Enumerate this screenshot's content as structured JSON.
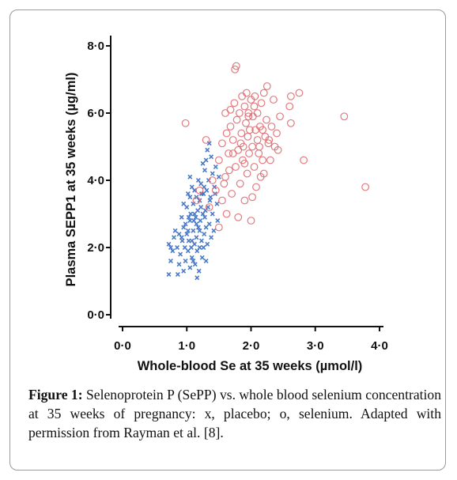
{
  "chart_data": {
    "type": "scatter",
    "xlabel": "Whole-blood Se at 35 weeks (µmol/l)",
    "ylabel": "Plasma SEPP1 at 35 weeks (µg/ml)",
    "xlim": [
      0,
      4
    ],
    "ylim": [
      0,
      8
    ],
    "x_ticks": [
      "0·0",
      "1·0",
      "2·0",
      "3·0",
      "4·0"
    ],
    "y_ticks": [
      "0·0",
      "2·0",
      "4·0",
      "6·0",
      "8·0"
    ],
    "grid": false,
    "series": [
      {
        "marker": "x",
        "color": "#3a6fc4",
        "points": [
          [
            0.72,
            1.2
          ],
          [
            0.75,
            1.6
          ],
          [
            0.72,
            2.1
          ],
          [
            0.75,
            2.0
          ],
          [
            0.78,
            1.9
          ],
          [
            0.82,
            2.5
          ],
          [
            0.85,
            2.0
          ],
          [
            0.86,
            1.2
          ],
          [
            0.88,
            2.4
          ],
          [
            0.9,
            1.8
          ],
          [
            0.92,
            2.9
          ],
          [
            0.93,
            2.2
          ],
          [
            0.95,
            1.3
          ],
          [
            0.95,
            2.6
          ],
          [
            0.97,
            2.0
          ],
          [
            0.98,
            1.6
          ],
          [
            1.0,
            3.2
          ],
          [
            1.0,
            2.4
          ],
          [
            1.02,
            1.9
          ],
          [
            1.02,
            3.6
          ],
          [
            1.03,
            2.2
          ],
          [
            1.05,
            1.4
          ],
          [
            1.05,
            2.8
          ],
          [
            1.06,
            3.0
          ],
          [
            1.07,
            2.0
          ],
          [
            1.08,
            3.8
          ],
          [
            1.08,
            1.7
          ],
          [
            1.1,
            2.5
          ],
          [
            1.1,
            3.3
          ],
          [
            1.12,
            2.1
          ],
          [
            1.12,
            3.7
          ],
          [
            1.13,
            1.5
          ],
          [
            1.14,
            2.9
          ],
          [
            1.15,
            2.3
          ],
          [
            1.15,
            3.5
          ],
          [
            1.16,
            1.9
          ],
          [
            1.17,
            3.1
          ],
          [
            1.18,
            2.6
          ],
          [
            1.19,
            1.3
          ],
          [
            1.2,
            3.4
          ],
          [
            1.2,
            2.0
          ],
          [
            1.21,
            2.8
          ],
          [
            1.22,
            3.9
          ],
          [
            1.23,
            2.2
          ],
          [
            1.24,
            1.7
          ],
          [
            1.25,
            3.0
          ],
          [
            1.26,
            3.6
          ],
          [
            1.27,
            2.4
          ],
          [
            1.28,
            4.3
          ],
          [
            1.28,
            2.9
          ],
          [
            1.3,
            1.6
          ],
          [
            1.3,
            4.6
          ],
          [
            1.31,
            3.7
          ],
          [
            1.32,
            2.1
          ],
          [
            1.33,
            3.2
          ],
          [
            1.34,
            4.0
          ],
          [
            1.35,
            2.7
          ],
          [
            1.35,
            5.1
          ],
          [
            1.37,
            3.5
          ],
          [
            1.38,
            2.3
          ],
          [
            1.4,
            4.2
          ],
          [
            1.4,
            3.0
          ],
          [
            1.42,
            2.5
          ],
          [
            1.43,
            3.8
          ],
          [
            1.45,
            4.4
          ],
          [
            1.47,
            3.3
          ],
          [
            1.48,
            2.8
          ],
          [
            1.5,
            4.1
          ],
          [
            1.05,
            4.1
          ],
          [
            0.98,
            2.7
          ],
          [
            1.02,
            2.5
          ],
          [
            1.1,
            1.6
          ],
          [
            1.18,
            4.0
          ],
          [
            1.22,
            3.2
          ],
          [
            1.26,
            2.0
          ],
          [
            1.3,
            2.6
          ],
          [
            0.88,
            1.5
          ],
          [
            0.92,
            2.3
          ],
          [
            1.15,
            2.7
          ],
          [
            1.25,
            4.5
          ],
          [
            1.36,
            3.4
          ],
          [
            1.08,
            2.2
          ],
          [
            1.12,
            3.0
          ],
          [
            1.2,
            2.5
          ],
          [
            0.95,
            3.3
          ],
          [
            1.44,
            3.6
          ],
          [
            1.32,
            4.9
          ],
          [
            1.05,
            3.5
          ],
          [
            0.8,
            2.3
          ],
          [
            1.16,
            1.1
          ],
          [
            1.23,
            3.6
          ],
          [
            1.29,
            3.1
          ],
          [
            1.38,
            4.7
          ],
          [
            1.11,
            2.8
          ],
          [
            1.27,
            3.8
          ],
          [
            1.03,
            2.9
          ]
        ]
      },
      {
        "marker": "o",
        "color": "#e06a70",
        "points": [
          [
            0.98,
            5.7
          ],
          [
            1.15,
            3.4
          ],
          [
            1.2,
            3.7
          ],
          [
            1.3,
            5.2
          ],
          [
            1.35,
            3.2
          ],
          [
            1.4,
            4.0
          ],
          [
            1.45,
            3.7
          ],
          [
            1.5,
            4.6
          ],
          [
            1.5,
            2.6
          ],
          [
            1.55,
            5.1
          ],
          [
            1.55,
            3.4
          ],
          [
            1.6,
            4.1
          ],
          [
            1.6,
            6.0
          ],
          [
            1.62,
            3.0
          ],
          [
            1.65,
            4.8
          ],
          [
            1.68,
            5.6
          ],
          [
            1.7,
            3.6
          ],
          [
            1.72,
            5.2
          ],
          [
            1.74,
            6.3
          ],
          [
            1.75,
            7.3
          ],
          [
            1.76,
            4.4
          ],
          [
            1.78,
            5.8
          ],
          [
            1.8,
            2.9
          ],
          [
            1.8,
            4.9
          ],
          [
            1.82,
            6.0
          ],
          [
            1.83,
            3.9
          ],
          [
            1.85,
            5.4
          ],
          [
            1.86,
            6.5
          ],
          [
            1.87,
            4.6
          ],
          [
            1.88,
            5.0
          ],
          [
            1.9,
            6.2
          ],
          [
            1.9,
            3.4
          ],
          [
            1.92,
            5.7
          ],
          [
            1.93,
            6.6
          ],
          [
            1.94,
            4.2
          ],
          [
            1.95,
            5.3
          ],
          [
            1.96,
            6.0
          ],
          [
            1.97,
            4.8
          ],
          [
            1.98,
            5.5
          ],
          [
            2.0,
            6.4
          ],
          [
            2.0,
            2.8
          ],
          [
            2.02,
            5.0
          ],
          [
            2.03,
            5.9
          ],
          [
            2.05,
            4.4
          ],
          [
            2.05,
            6.2
          ],
          [
            2.07,
            5.5
          ],
          [
            2.08,
            3.8
          ],
          [
            2.1,
            5.2
          ],
          [
            2.1,
            6.0
          ],
          [
            2.12,
            4.8
          ],
          [
            2.14,
            5.6
          ],
          [
            2.15,
            4.1
          ],
          [
            2.16,
            6.3
          ],
          [
            2.18,
            5.5
          ],
          [
            2.2,
            6.6
          ],
          [
            2.2,
            4.2
          ],
          [
            2.22,
            5.3
          ],
          [
            2.24,
            5.8
          ],
          [
            2.25,
            6.8
          ],
          [
            2.27,
            5.1
          ],
          [
            2.3,
            4.6
          ],
          [
            2.32,
            5.6
          ],
          [
            2.35,
            6.4
          ],
          [
            2.37,
            5.0
          ],
          [
            2.4,
            5.4
          ],
          [
            2.42,
            4.9
          ],
          [
            2.45,
            5.9
          ],
          [
            2.6,
            6.2
          ],
          [
            2.62,
            5.7
          ],
          [
            2.62,
            6.5
          ],
          [
            2.75,
            6.6
          ],
          [
            2.82,
            4.6
          ],
          [
            3.45,
            5.9
          ],
          [
            3.78,
            3.8
          ],
          [
            1.77,
            7.4
          ],
          [
            1.66,
            4.3
          ],
          [
            1.84,
            5.1
          ],
          [
            1.96,
            5.9
          ],
          [
            2.06,
            6.5
          ],
          [
            2.13,
            5.0
          ],
          [
            1.58,
            3.9
          ],
          [
            1.72,
            4.8
          ],
          [
            1.9,
            4.5
          ],
          [
            2.02,
            3.5
          ],
          [
            1.68,
            6.1
          ],
          [
            2.28,
            5.2
          ],
          [
            1.62,
            5.4
          ],
          [
            2.18,
            4.6
          ]
        ]
      }
    ]
  },
  "caption": {
    "label": "Figure 1:",
    "text": " Selenoprotein P (SePP) vs. whole blood selenium concentration at 35 weeks of pregnancy: x, placebo; o, selenium. Adapted with permission from Rayman et al. [8]."
  }
}
